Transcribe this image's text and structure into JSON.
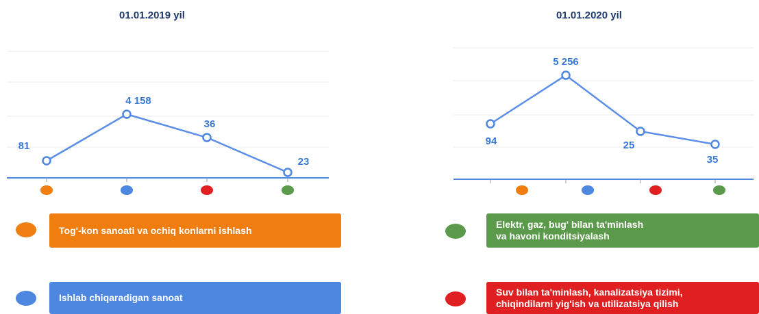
{
  "charts": [
    {
      "title": "01.01.2019 yil",
      "points": [
        "81",
        "4 158",
        "36",
        "23"
      ]
    },
    {
      "title": "01.01.2020 yil",
      "points": [
        "94",
        "5 256",
        "25",
        "35"
      ]
    }
  ],
  "legend": [
    {
      "lines": [
        "Tog'-kon sanoati va ochiq konlarni ishlash"
      ]
    },
    {
      "lines": [
        "Ishlab chiqaradigan sanoat"
      ]
    },
    {
      "lines": [
        "Elektr, gaz, bug' bilan ta'minlash",
        "va havoni konditsiyalash"
      ]
    },
    {
      "lines": [
        "Suv bilan ta'minlash, kanalizatsiya tizimi,",
        "chiqindilarni yig'ish va utilizatsiya qilish"
      ]
    }
  ]
}
